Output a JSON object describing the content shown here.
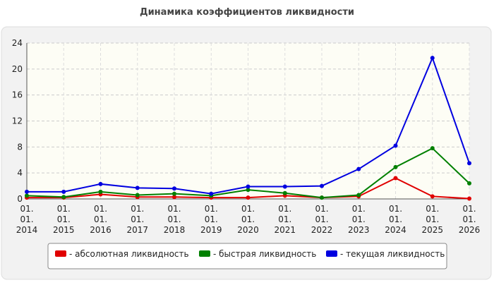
{
  "chart_data": {
    "type": "line",
    "title": "Динамика коэффициентов ликвидности",
    "categories": [
      "01. 01. 2014",
      "01. 01. 2015",
      "01. 01. 2016",
      "01. 01. 2017",
      "01. 01. 2018",
      "01. 01. 2019",
      "01. 01. 2020",
      "01. 01. 2021",
      "01. 01. 2022",
      "01. 01. 2023",
      "01. 01. 2024",
      "01. 01. 2025",
      "01. 01. 2026"
    ],
    "series": [
      {
        "name": "- абсолютная ликвидность",
        "color": "#e00000",
        "values": [
          0.2,
          0.2,
          0.7,
          0.3,
          0.3,
          0.2,
          0.2,
          0.5,
          0.2,
          0.4,
          3.2,
          0.4,
          0.05
        ]
      },
      {
        "name": "- быстрая ликвидность",
        "color": "#008000",
        "values": [
          0.5,
          0.3,
          1.1,
          0.6,
          0.8,
          0.5,
          1.4,
          0.9,
          0.2,
          0.6,
          4.9,
          7.8,
          2.4
        ]
      },
      {
        "name": "- текущая ликвидность",
        "color": "#0000e0",
        "values": [
          1.1,
          1.1,
          2.3,
          1.7,
          1.6,
          0.8,
          1.9,
          1.9,
          2.0,
          4.6,
          8.2,
          21.7,
          5.5
        ]
      }
    ],
    "ylim": [
      0,
      24
    ],
    "yticks": [
      0,
      4,
      8,
      12,
      16,
      20,
      24
    ],
    "grid": true
  }
}
